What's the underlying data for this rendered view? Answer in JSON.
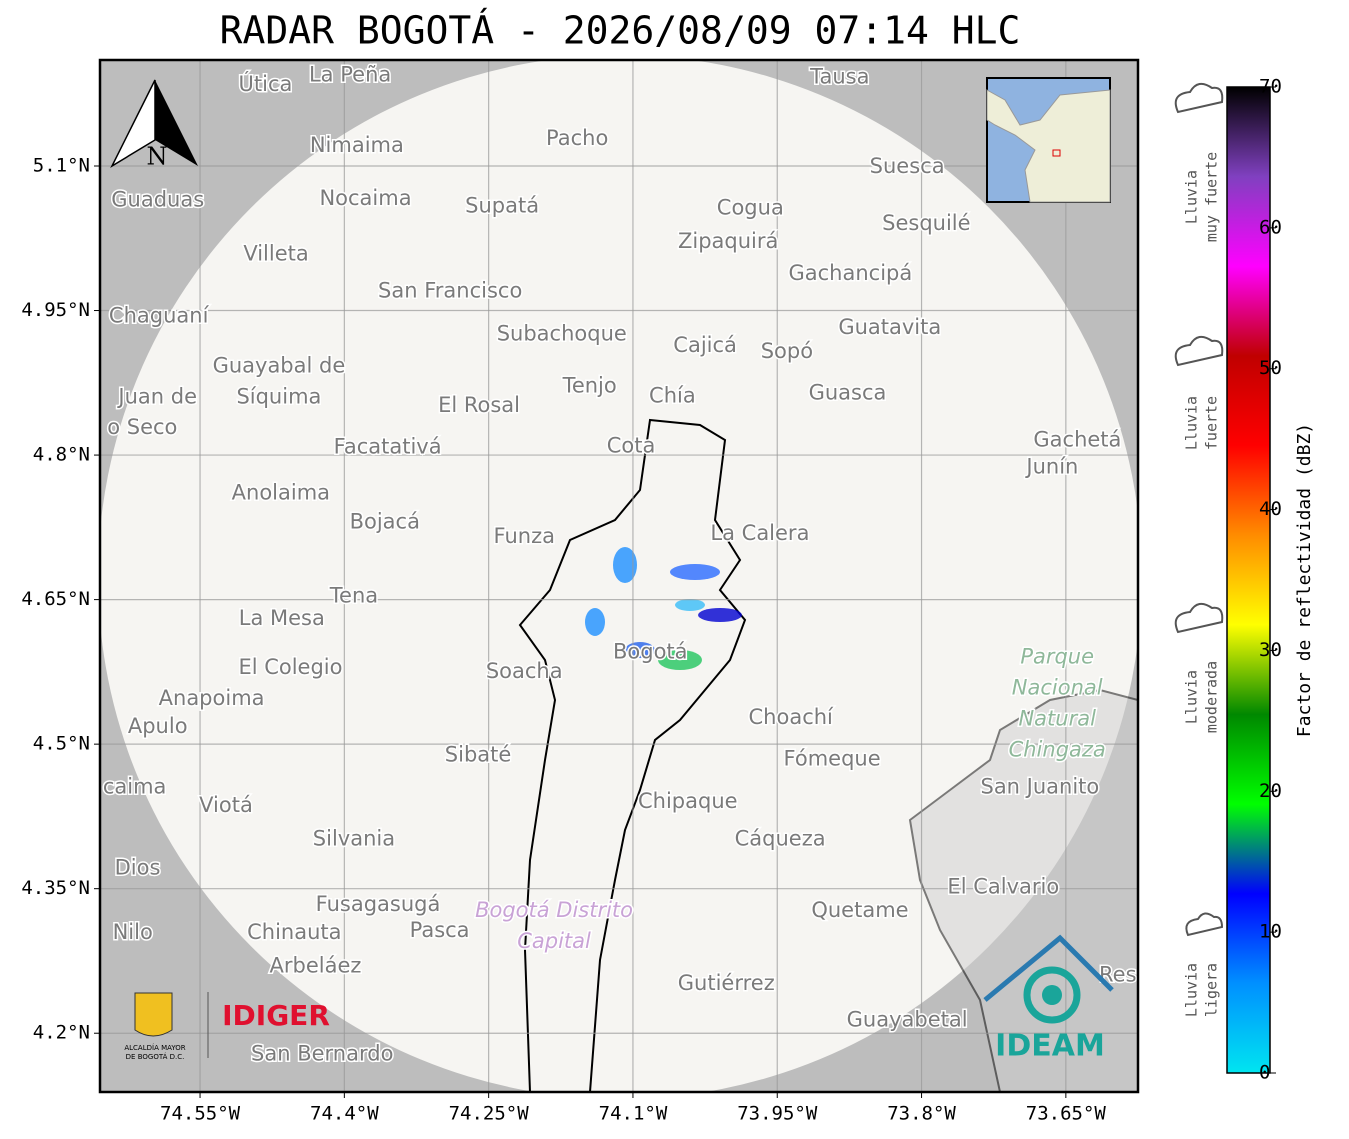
{
  "title": "RADAR BOGOTÁ - 2026/08/09 07:14 HLC",
  "map": {
    "type": "map",
    "xlim": [
      -74.654,
      -73.575
    ],
    "ylim": [
      4.139,
      5.21
    ],
    "grid": true,
    "xticks": [
      {
        "value": -74.55,
        "label": "74.55°W"
      },
      {
        "value": -74.4,
        "label": "74.4°W"
      },
      {
        "value": -74.25,
        "label": "74.25°W"
      },
      {
        "value": -74.1,
        "label": "74.1°W"
      },
      {
        "value": -73.95,
        "label": "73.95°W"
      },
      {
        "value": -73.8,
        "label": "73.8°W"
      },
      {
        "value": -73.65,
        "label": "73.65°W"
      }
    ],
    "yticks": [
      {
        "value": 5.1,
        "label": "5.1°N"
      },
      {
        "value": 4.95,
        "label": "4.95°N"
      },
      {
        "value": 4.8,
        "label": "4.8°N"
      },
      {
        "value": 4.65,
        "label": "4.65°N"
      },
      {
        "value": 4.5,
        "label": "4.5°N"
      },
      {
        "value": 4.35,
        "label": "4.35°N"
      },
      {
        "value": 4.2,
        "label": "4.2°N"
      }
    ],
    "north_label": "N",
    "places": [
      {
        "name": "Útica",
        "lon": -74.482,
        "lat": 5.184
      },
      {
        "name": "La Peña",
        "lon": -74.394,
        "lat": 5.194
      },
      {
        "name": "Tausa",
        "lon": -73.885,
        "lat": 5.192
      },
      {
        "name": "Pacho",
        "lon": -74.158,
        "lat": 5.128
      },
      {
        "name": "Nimaima",
        "lon": -74.387,
        "lat": 5.121
      },
      {
        "name": "Guaduas",
        "lon": -74.594,
        "lat": 5.064
      },
      {
        "name": "Nocaima",
        "lon": -74.378,
        "lat": 5.066
      },
      {
        "name": "Supatá",
        "lon": -74.236,
        "lat": 5.058
      },
      {
        "name": "Cogua",
        "lon": -73.978,
        "lat": 5.056
      },
      {
        "name": "Suesca",
        "lon": -73.815,
        "lat": 5.099
      },
      {
        "name": "Sesquilé",
        "lon": -73.795,
        "lat": 5.04
      },
      {
        "name": "Zipaquirá",
        "lon": -74.001,
        "lat": 5.021
      },
      {
        "name": "Villeta",
        "lon": -74.471,
        "lat": 5.008
      },
      {
        "name": "Gachancipá",
        "lon": -73.874,
        "lat": 4.988
      },
      {
        "name": "San Francisco",
        "lon": -74.29,
        "lat": 4.97
      },
      {
        "name": "Chaguaní",
        "lon": -74.593,
        "lat": 4.944
      },
      {
        "name": "Guatavita",
        "lon": -73.833,
        "lat": 4.932
      },
      {
        "name": "Subachoque",
        "lon": -74.174,
        "lat": 4.925
      },
      {
        "name": "Cajicá",
        "lon": -74.025,
        "lat": 4.913
      },
      {
        "name": "Sopó",
        "lon": -73.94,
        "lat": 4.907
      },
      {
        "name": "Guayabal de",
        "lon": -74.468,
        "lat": 4.892
      },
      {
        "name": "Síquima",
        "lon": -74.468,
        "lat": 4.86
      },
      {
        "name": "Juan de",
        "lon": -74.594,
        "lat": 4.86
      },
      {
        "name": "o Seco",
        "lon": -74.61,
        "lat": 4.828
      },
      {
        "name": "Tenjo",
        "lon": -74.145,
        "lat": 4.871
      },
      {
        "name": "Chía",
        "lon": -74.059,
        "lat": 4.861
      },
      {
        "name": "Guasca",
        "lon": -73.877,
        "lat": 4.864
      },
      {
        "name": "El Rosal",
        "lon": -74.26,
        "lat": 4.851
      },
      {
        "name": "Facatativá",
        "lon": -74.355,
        "lat": 4.808
      },
      {
        "name": "Cota",
        "lon": -74.102,
        "lat": 4.809
      },
      {
        "name": "Gachetá",
        "lon": -73.638,
        "lat": 4.815
      },
      {
        "name": "Junín",
        "lon": -73.664,
        "lat": 4.787
      },
      {
        "name": "Anolaima",
        "lon": -74.466,
        "lat": 4.76
      },
      {
        "name": "Bojacá",
        "lon": -74.358,
        "lat": 4.73
      },
      {
        "name": "Funza",
        "lon": -74.213,
        "lat": 4.715
      },
      {
        "name": "La Calera",
        "lon": -73.968,
        "lat": 4.718
      },
      {
        "name": "Tena",
        "lon": -74.39,
        "lat": 4.653
      },
      {
        "name": "La Mesa",
        "lon": -74.465,
        "lat": 4.63
      },
      {
        "name": "El Colegio",
        "lon": -74.456,
        "lat": 4.579
      },
      {
        "name": "Bogotá",
        "lon": -74.082,
        "lat": 4.595
      },
      {
        "name": "Soacha",
        "lon": -74.213,
        "lat": 4.575
      },
      {
        "name": "Anapoima",
        "lon": -74.538,
        "lat": 4.547
      },
      {
        "name": "Apulo",
        "lon": -74.594,
        "lat": 4.518
      },
      {
        "name": "Choachí",
        "lon": -73.936,
        "lat": 4.527
      },
      {
        "name": "Sibaté",
        "lon": -74.261,
        "lat": 4.488
      },
      {
        "name": "Fómeque",
        "lon": -73.893,
        "lat": 4.484
      },
      {
        "name": "San Juanito",
        "lon": -73.677,
        "lat": 4.455
      },
      {
        "name": "caima",
        "lon": -74.618,
        "lat": 4.455
      },
      {
        "name": "Viotá",
        "lon": -74.523,
        "lat": 4.436
      },
      {
        "name": "Chipaque",
        "lon": -74.043,
        "lat": 4.44
      },
      {
        "name": "Silvania",
        "lon": -74.39,
        "lat": 4.401
      },
      {
        "name": "Cáqueza",
        "lon": -73.947,
        "lat": 4.401
      },
      {
        "name": "Dios",
        "lon": -74.615,
        "lat": 4.371
      },
      {
        "name": "El Calvario",
        "lon": -73.715,
        "lat": 4.351
      },
      {
        "name": "Fusagasugá",
        "lon": -74.365,
        "lat": 4.333
      },
      {
        "name": "Quetame",
        "lon": -73.864,
        "lat": 4.327
      },
      {
        "name": "Nilo",
        "lon": -74.62,
        "lat": 4.304
      },
      {
        "name": "Chinauta",
        "lon": -74.452,
        "lat": 4.304
      },
      {
        "name": "Pasca",
        "lon": -74.301,
        "lat": 4.306
      },
      {
        "name": "Arbeláez",
        "lon": -74.43,
        "lat": 4.269
      },
      {
        "name": "Gutiérrez",
        "lon": -74.003,
        "lat": 4.251
      },
      {
        "name": "Guayabetal",
        "lon": -73.815,
        "lat": 4.213
      },
      {
        "name": "San Bernardo",
        "lon": -74.423,
        "lat": 4.178
      },
      {
        "name": "Res",
        "lon": -73.596,
        "lat": 4.26
      }
    ],
    "areas": [
      {
        "lines": [
          "Parque",
          "Nacional",
          "Natural",
          "Chingaza"
        ],
        "lon": -73.659,
        "lat": 4.59,
        "color": "#8fb89a"
      },
      {
        "lines": [
          "Bogotá Distrito",
          "Capital"
        ],
        "lon": -74.182,
        "lat": 4.327,
        "color": "#c9a3d6"
      }
    ]
  },
  "colorbar": {
    "label": "Factor de reflectividad (dBZ)",
    "lim": [
      0,
      70
    ],
    "ticks": [
      0,
      10,
      20,
      30,
      40,
      50,
      60,
      70
    ],
    "colors": [
      "#00e5f0",
      "#0090ff",
      "#0000ff",
      "#00ff00",
      "#008800",
      "#ffff00",
      "#ff8c00",
      "#ff0000",
      "#c00000",
      "#ff00ff",
      "#8040c0",
      "#000000"
    ]
  },
  "rain_legend": [
    {
      "lines": [
        "Lluvia",
        "muy fuerte"
      ]
    },
    {
      "lines": [
        "Lluvia",
        "fuerte"
      ]
    },
    {
      "lines": [
        "Lluvia",
        "moderada"
      ]
    },
    {
      "lines": [
        "Lluvia",
        "ligera"
      ]
    }
  ],
  "logos": {
    "alcaldia": [
      "ALCALDÍA MAYOR",
      "DE BOGOTÁ D.C."
    ],
    "idiger": "IDIGER",
    "ideam": "IDEAM"
  }
}
